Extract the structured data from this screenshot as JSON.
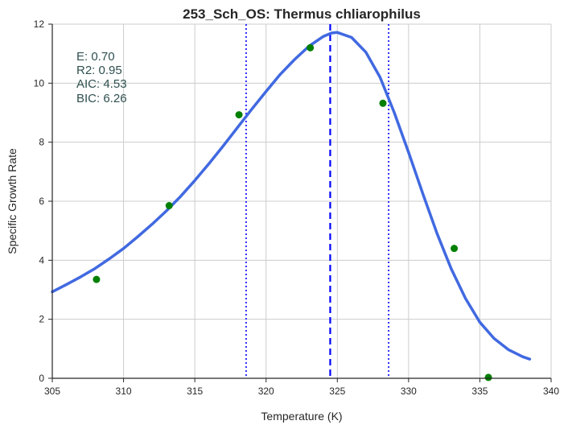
{
  "chart_data": {
    "type": "line",
    "title": "253_Sch_OS: Thermus chliarophilus",
    "xlabel": "Temperature (K)",
    "ylabel": "Specific Growth Rate",
    "xlim": [
      305,
      340
    ],
    "ylim": [
      0,
      12
    ],
    "x_ticks": [
      305,
      310,
      315,
      320,
      325,
      330,
      335,
      340
    ],
    "y_ticks": [
      0,
      2,
      4,
      6,
      8,
      10,
      12
    ],
    "grid": true,
    "stats": [
      "E:  0.70",
      "R2:  0.95",
      "AIC: 4.53",
      "BIC: 6.26"
    ],
    "vertical_lines": [
      {
        "x": 318.6,
        "style": "dotted",
        "color": "#0000ff"
      },
      {
        "x": 324.5,
        "style": "dashed",
        "color": "#0000ff"
      },
      {
        "x": 328.6,
        "style": "dotted",
        "color": "#0000ff"
      }
    ],
    "observed": {
      "color": "#008000",
      "points": [
        {
          "x": 308.1,
          "y": 3.35
        },
        {
          "x": 313.2,
          "y": 5.85
        },
        {
          "x": 318.1,
          "y": 8.93
        },
        {
          "x": 323.1,
          "y": 11.2
        },
        {
          "x": 328.2,
          "y": 9.32
        },
        {
          "x": 333.2,
          "y": 4.4
        },
        {
          "x": 335.6,
          "y": 0.03
        }
      ]
    },
    "fit": {
      "color": "#4169e1",
      "points": [
        {
          "x": 305,
          "y": 2.93
        },
        {
          "x": 306,
          "y": 3.18
        },
        {
          "x": 307,
          "y": 3.44
        },
        {
          "x": 308,
          "y": 3.72
        },
        {
          "x": 309,
          "y": 4.05
        },
        {
          "x": 310,
          "y": 4.4
        },
        {
          "x": 311,
          "y": 4.8
        },
        {
          "x": 312,
          "y": 5.22
        },
        {
          "x": 313,
          "y": 5.67
        },
        {
          "x": 314,
          "y": 6.16
        },
        {
          "x": 315,
          "y": 6.7
        },
        {
          "x": 316,
          "y": 7.28
        },
        {
          "x": 317,
          "y": 7.88
        },
        {
          "x": 318,
          "y": 8.5
        },
        {
          "x": 319,
          "y": 9.12
        },
        {
          "x": 320,
          "y": 9.72
        },
        {
          "x": 321,
          "y": 10.3
        },
        {
          "x": 322,
          "y": 10.8
        },
        {
          "x": 323,
          "y": 11.25
        },
        {
          "x": 324,
          "y": 11.58
        },
        {
          "x": 324.6,
          "y": 11.7
        },
        {
          "x": 325,
          "y": 11.72
        },
        {
          "x": 326,
          "y": 11.55
        },
        {
          "x": 327,
          "y": 11.05
        },
        {
          "x": 328,
          "y": 10.2
        },
        {
          "x": 329,
          "y": 9.0
        },
        {
          "x": 330,
          "y": 7.65
        },
        {
          "x": 331,
          "y": 6.25
        },
        {
          "x": 332,
          "y": 4.9
        },
        {
          "x": 333,
          "y": 3.7
        },
        {
          "x": 334,
          "y": 2.7
        },
        {
          "x": 335,
          "y": 1.9
        },
        {
          "x": 336,
          "y": 1.35
        },
        {
          "x": 337,
          "y": 0.97
        },
        {
          "x": 338,
          "y": 0.73
        },
        {
          "x": 338.5,
          "y": 0.65
        }
      ]
    }
  }
}
